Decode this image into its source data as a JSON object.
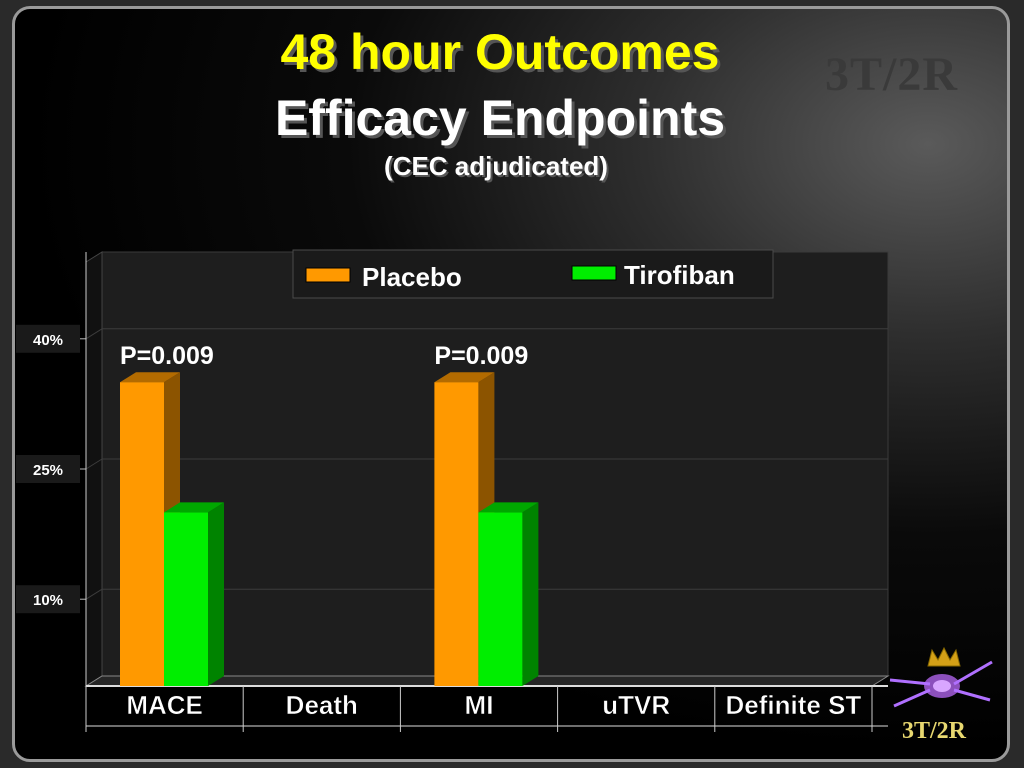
{
  "slide": {
    "title_line1": "48 hour Outcomes",
    "title_line2": "Efficacy Endpoints",
    "title_line3": "(CEC adjudicated)",
    "watermark": "3T/2R",
    "logo_text": "3T/2R"
  },
  "colors": {
    "placebo": "#ff9900",
    "tirofiban": "#00ee00",
    "title": "#ffff00",
    "text": "#ffffff"
  },
  "chart_data": {
    "type": "bar",
    "categories": [
      "MACE",
      "Death",
      "MI",
      "uTVR",
      "Definite ST"
    ],
    "series": [
      {
        "name": "Placebo",
        "values": [
          35,
          0,
          35,
          0,
          0
        ]
      },
      {
        "name": "Tirofiban",
        "values": [
          20,
          0,
          20,
          0,
          0
        ]
      }
    ],
    "y_ticks": [
      {
        "value": 10,
        "label": "10%"
      },
      {
        "value": 25,
        "label": "25%"
      },
      {
        "value": 40,
        "label": "40%"
      }
    ],
    "annotations": [
      {
        "category": "MACE",
        "text": "P=0.009"
      },
      {
        "category": "MI",
        "text": "P=0.009"
      }
    ],
    "ylim": [
      0,
      50
    ],
    "grid": true,
    "legend": "top-center"
  }
}
